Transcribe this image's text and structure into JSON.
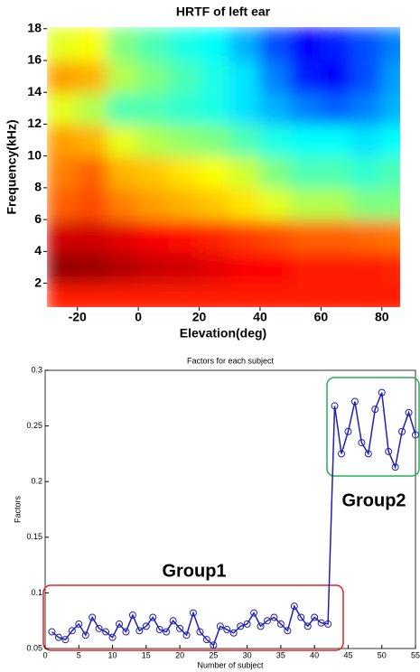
{
  "chart_data": [
    {
      "type": "heatmap",
      "title": "HRTF of left ear",
      "x_label": "Elevation(deg)",
      "y_label": "Frequency(kHz)",
      "x": [
        -25,
        -15,
        -5,
        5,
        15,
        25,
        35,
        45,
        55,
        65,
        75,
        85
      ],
      "y": [
        1,
        3,
        5,
        7,
        9,
        11,
        13,
        15,
        17
      ],
      "z": [
        [
          0.85,
          0.85,
          0.85,
          0.85,
          0.85,
          0.85,
          0.85,
          0.85,
          0.85,
          0.85,
          0.85,
          0.85
        ],
        [
          0.98,
          0.97,
          0.95,
          0.93,
          0.92,
          0.9,
          0.88,
          0.87,
          0.85,
          0.85,
          0.85,
          0.84
        ],
        [
          0.92,
          0.92,
          0.9,
          0.88,
          0.86,
          0.84,
          0.82,
          0.8,
          0.78,
          0.78,
          0.77,
          0.76
        ],
        [
          0.78,
          0.8,
          0.75,
          0.72,
          0.7,
          0.68,
          0.65,
          0.6,
          0.55,
          0.55,
          0.5,
          0.5
        ],
        [
          0.75,
          0.78,
          0.7,
          0.68,
          0.65,
          0.62,
          0.58,
          0.5,
          0.45,
          0.45,
          0.42,
          0.45
        ],
        [
          0.72,
          0.7,
          0.6,
          0.55,
          0.52,
          0.5,
          0.45,
          0.4,
          0.38,
          0.38,
          0.35,
          0.38
        ],
        [
          0.6,
          0.55,
          0.45,
          0.45,
          0.42,
          0.4,
          0.35,
          0.3,
          0.25,
          0.22,
          0.25,
          0.3
        ],
        [
          0.72,
          0.7,
          0.55,
          0.5,
          0.45,
          0.4,
          0.35,
          0.25,
          0.15,
          0.12,
          0.2,
          0.28
        ],
        [
          0.6,
          0.62,
          0.5,
          0.45,
          0.4,
          0.38,
          0.3,
          0.2,
          0.12,
          0.15,
          0.2,
          0.25
        ]
      ],
      "zlim": [
        0,
        1
      ],
      "colormap": "jet",
      "xlim": [
        -30,
        86
      ],
      "xticks": [
        -20,
        0,
        20,
        40,
        60,
        80
      ],
      "ylim": [
        0.5,
        18.1
      ],
      "yticks": [
        2,
        4,
        6,
        8,
        10,
        12,
        14,
        16,
        18
      ]
    },
    {
      "type": "line",
      "title": "Factors for each subject",
      "x_label": "Number of subject",
      "y_label": "Factors",
      "x": [
        1,
        2,
        3,
        4,
        5,
        6,
        7,
        8,
        9,
        10,
        11,
        12,
        13,
        14,
        15,
        16,
        17,
        18,
        19,
        20,
        21,
        22,
        23,
        24,
        25,
        26,
        27,
        28,
        29,
        30,
        31,
        32,
        33,
        34,
        35,
        36,
        37,
        38,
        39,
        40,
        41,
        42,
        43,
        44,
        45,
        46,
        47,
        48,
        49,
        50,
        51,
        52,
        53,
        54,
        55
      ],
      "series": [
        {
          "color": "#1f1fb4",
          "values": [
            0.065,
            0.06,
            0.058,
            0.066,
            0.072,
            0.062,
            0.078,
            0.068,
            0.065,
            0.06,
            0.072,
            0.065,
            0.08,
            0.066,
            0.07,
            0.078,
            0.067,
            0.065,
            0.075,
            0.068,
            0.062,
            0.082,
            0.065,
            0.058,
            0.053,
            0.07,
            0.067,
            0.064,
            0.07,
            0.072,
            0.082,
            0.07,
            0.075,
            0.078,
            0.072,
            0.066,
            0.088,
            0.078,
            0.07,
            0.078,
            0.073,
            0.072,
            0.268,
            0.225,
            0.245,
            0.272,
            0.235,
            0.225,
            0.265,
            0.28,
            0.227,
            0.213,
            0.245,
            0.262,
            0.242
          ]
        }
      ],
      "xlim": [
        0,
        55
      ],
      "xticks": [
        0,
        5,
        10,
        15,
        20,
        25,
        30,
        35,
        40,
        45,
        50,
        55
      ],
      "ylim": [
        0.05,
        0.3
      ],
      "yticks": [
        0.05,
        0.1,
        0.15,
        0.2,
        0.25,
        0.3
      ],
      "annotations": [
        {
          "text": "Group1",
          "color": "#e82020"
        },
        {
          "text": "Group2",
          "color": "#20b050"
        }
      ]
    }
  ]
}
